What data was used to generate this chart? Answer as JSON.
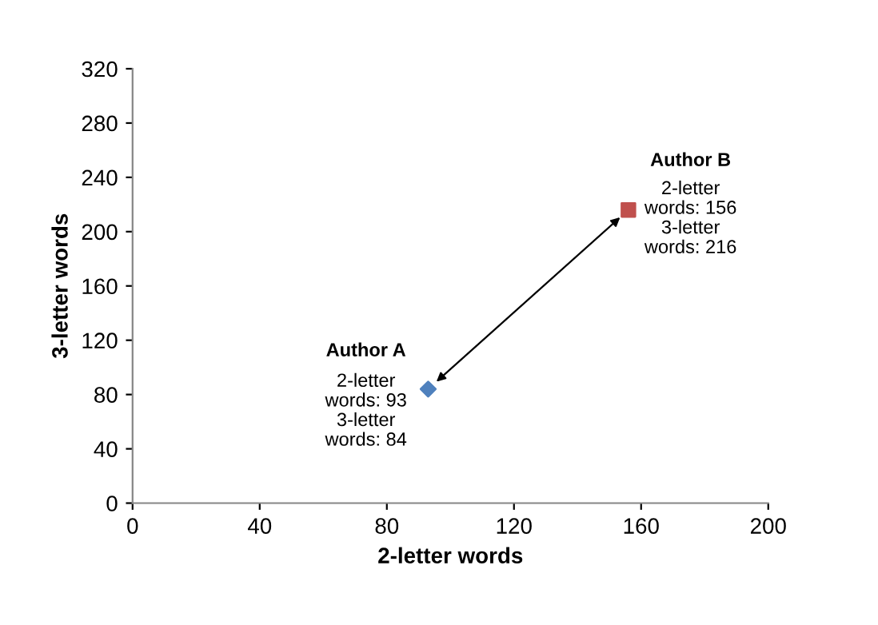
{
  "chart_data": {
    "type": "scatter",
    "xlabel": "2-letter words",
    "ylabel": "3-letter words",
    "xlim": [
      0,
      200
    ],
    "xticks": [
      0,
      40,
      80,
      120,
      160,
      200
    ],
    "ylim": [
      0,
      320
    ],
    "yticks": [
      0,
      40,
      80,
      120,
      160,
      200,
      240,
      280,
      320
    ],
    "grid": false,
    "legend": false,
    "series": [
      {
        "name": "Author A",
        "color": "#4f81bd",
        "marker": "diamond",
        "x": [
          93
        ],
        "values": [
          84
        ]
      },
      {
        "name": "Author B",
        "color": "#c0504d",
        "marker": "square",
        "x": [
          156
        ],
        "values": [
          216
        ]
      }
    ],
    "annotations": [
      {
        "text": "2-letter\nwords: 93\n3-letter\nwords: 84",
        "x": 93,
        "y": 84
      },
      {
        "text": "2-letter\nwords: 156\n3-letter\nwords: 216",
        "x": 156,
        "y": 216
      }
    ]
  }
}
